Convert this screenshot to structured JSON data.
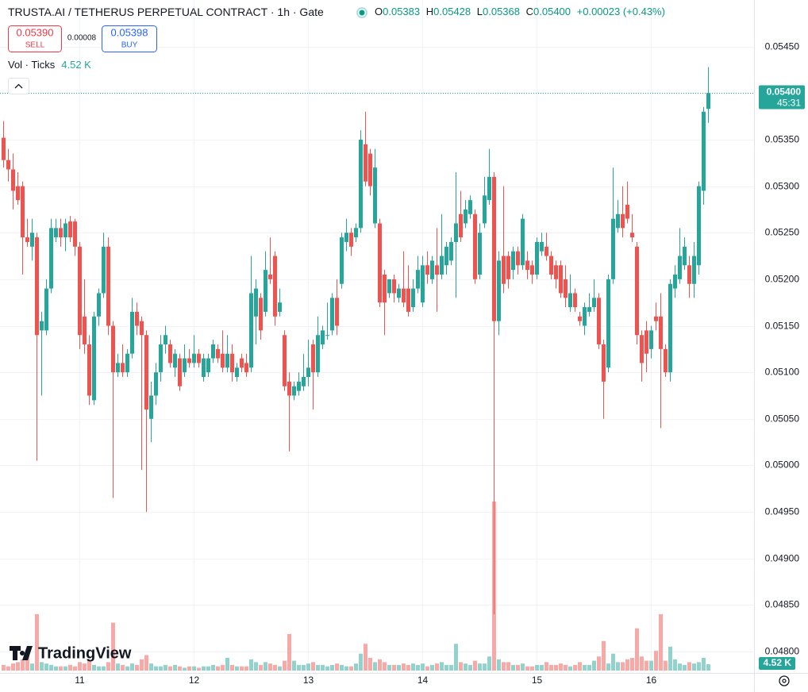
{
  "legend": {
    "symbol": "TRUSTA.AI / TETHERUS PERPETUAL CONTRACT · 1h · Gate",
    "ohlc": [
      {
        "label": "O",
        "value": "0.05383"
      },
      {
        "label": "H",
        "value": "0.05428"
      },
      {
        "label": "L",
        "value": "0.05368"
      },
      {
        "label": "C",
        "value": "0.05400"
      }
    ],
    "change": "+0.00023 (+0.43%)",
    "sell": {
      "price": "0.05390",
      "label": "SELL"
    },
    "spread": "0.00008",
    "buy": {
      "price": "0.05398",
      "label": "BUY"
    },
    "volume_name": "Vol · Ticks",
    "volume_value": "4.52 K"
  },
  "watermark": "TradingView",
  "chart_data": {
    "type": "candlestick",
    "categories": [
      null,
      null,
      null,
      null,
      null,
      null,
      null,
      null,
      null,
      null,
      null,
      null,
      null,
      null,
      null,
      null,
      "11",
      null,
      null,
      null,
      null,
      null,
      null,
      null,
      null,
      null,
      null,
      null,
      null,
      null,
      null,
      null,
      null,
      null,
      null,
      null,
      null,
      null,
      null,
      null,
      "12",
      null,
      null,
      null,
      null,
      null,
      null,
      null,
      null,
      null,
      null,
      null,
      null,
      null,
      null,
      null,
      null,
      null,
      null,
      null,
      null,
      null,
      null,
      null,
      "13",
      null,
      null,
      null,
      null,
      null,
      null,
      null,
      null,
      null,
      null,
      null,
      null,
      null,
      null,
      null,
      null,
      null,
      null,
      null,
      null,
      null,
      null,
      null,
      "14",
      null,
      null,
      null,
      null,
      null,
      null,
      null,
      null,
      null,
      null,
      null,
      null,
      null,
      null,
      null,
      null,
      null,
      null,
      null,
      null,
      null,
      null,
      null,
      "15",
      null,
      null,
      null,
      null,
      null,
      null,
      null,
      null,
      null,
      null,
      null,
      null,
      null,
      null,
      null,
      null,
      null,
      null,
      null,
      null,
      null,
      null,
      null,
      "16",
      null,
      null,
      null,
      null,
      null,
      null,
      null,
      null,
      null,
      null,
      null,
      null
    ],
    "open": [
      0.05352,
      0.05328,
      0.05318,
      0.053,
      0.053,
      0.05245,
      0.05235,
      0.05245,
      0.05145,
      0.05145,
      0.0519,
      0.05245,
      0.05255,
      0.05245,
      0.05262,
      0.05262,
      0.05235,
      0.0516,
      0.0513,
      0.0507,
      0.0516,
      0.05185,
      0.05235,
      0.0515,
      0.051,
      0.0511,
      0.051,
      0.0512,
      0.05165,
      0.05155,
      0.0514,
      0.0505,
      0.05075,
      0.051,
      0.0513,
      0.0513,
      0.05105,
      0.05115,
      0.051,
      0.05115,
      0.0511,
      0.0512,
      0.05095,
      0.051,
      0.05115,
      0.05125,
      0.0512,
      0.05105,
      0.0512,
      0.05095,
      0.05115,
      0.0511,
      0.05105,
      0.0516,
      0.0518,
      0.05165,
      0.05205,
      0.05225,
      0.05165,
      0.0514,
      0.0509,
      0.05075,
      0.0508,
      0.05085,
      0.05095,
      0.0513,
      0.051,
      0.0513,
      0.0514,
      0.05145,
      0.0518,
      0.05195,
      0.0524,
      0.0525,
      0.05245,
      0.05255,
      0.05345,
      0.05335,
      0.0526,
      0.0526,
      0.05205,
      0.05185,
      0.052,
      0.0518,
      0.0519,
      0.0519,
      0.0517,
      0.0519,
      0.05175,
      0.05215,
      0.052,
      0.05215,
      0.05205,
      0.05215,
      0.0522,
      0.0524,
      0.0527,
      0.0526,
      0.0527,
      0.0527,
      0.05205,
      0.0526,
      0.05285,
      0.0531,
      0.05155,
      0.05225,
      0.05225,
      0.0521,
      0.0523,
      0.05215,
      0.0522,
      0.05215,
      0.05205,
      0.0523,
      0.05235,
      0.05225,
      0.05215,
      0.05215,
      0.052,
      0.0517,
      0.05185,
      0.0516,
      0.0515,
      0.05165,
      0.0517,
      0.0518,
      0.0513,
      0.05105,
      0.052,
      0.05255,
      0.0527,
      0.0528,
      0.0525,
      0.05235,
      0.0514,
      0.05145,
      0.05125,
      0.0516,
      0.0516,
      0.05125,
      0.051,
      0.0519,
      0.052,
      0.05215,
      0.05215,
      0.05195,
      0.05215,
      0.05295,
      0.05383
    ],
    "high": [
      0.0537,
      0.0534,
      0.05335,
      0.05315,
      0.05305,
      0.05265,
      0.05265,
      0.0525,
      0.05165,
      0.052,
      0.05265,
      0.05265,
      0.05265,
      0.05265,
      0.05268,
      0.05265,
      0.0524,
      0.052,
      0.0514,
      0.05165,
      0.0519,
      0.0525,
      0.05245,
      0.05155,
      0.0512,
      0.0513,
      0.05125,
      0.0518,
      0.05175,
      0.0516,
      0.05145,
      0.0509,
      0.0511,
      0.0514,
      0.0515,
      0.05135,
      0.05125,
      0.0512,
      0.0513,
      0.05125,
      0.0514,
      0.05125,
      0.0512,
      0.0512,
      0.05135,
      0.0513,
      0.05145,
      0.0514,
      0.0513,
      0.0511,
      0.0512,
      0.0512,
      0.05225,
      0.052,
      0.05185,
      0.0523,
      0.05245,
      0.0523,
      0.0519,
      0.05145,
      0.051,
      0.0509,
      0.051,
      0.0512,
      0.05135,
      0.05135,
      0.0516,
      0.0515,
      0.05175,
      0.05185,
      0.052,
      0.0525,
      0.05265,
      0.05255,
      0.0526,
      0.0536,
      0.0538,
      0.0534,
      0.0534,
      0.05265,
      0.0521,
      0.052,
      0.05205,
      0.05195,
      0.0523,
      0.05215,
      0.052,
      0.05225,
      0.05225,
      0.0523,
      0.05225,
      0.05255,
      0.0527,
      0.0524,
      0.05245,
      0.05315,
      0.05295,
      0.05285,
      0.0529,
      0.05275,
      0.0526,
      0.0531,
      0.0534,
      0.05315,
      0.0523,
      0.053,
      0.0523,
      0.05235,
      0.05235,
      0.0527,
      0.0523,
      0.0522,
      0.05245,
      0.0525,
      0.0525,
      0.0523,
      0.0522,
      0.0522,
      0.05215,
      0.05205,
      0.0519,
      0.05165,
      0.05175,
      0.05185,
      0.052,
      0.05185,
      0.05135,
      0.05205,
      0.0532,
      0.05285,
      0.053,
      0.05305,
      0.0527,
      0.0524,
      0.05145,
      0.05155,
      0.0515,
      0.05175,
      0.05185,
      0.0513,
      0.052,
      0.05215,
      0.05255,
      0.05245,
      0.05225,
      0.0524,
      0.05305,
      0.05385,
      0.05428
    ],
    "low": [
      0.0532,
      0.05305,
      0.05275,
      0.0528,
      0.05205,
      0.05235,
      0.0522,
      0.05005,
      0.05075,
      0.0514,
      0.05185,
      0.0524,
      0.05235,
      0.0523,
      0.0524,
      0.05225,
      0.05125,
      0.0512,
      0.05065,
      0.05065,
      0.0515,
      0.0518,
      0.0514,
      0.04965,
      0.05095,
      0.05095,
      0.05095,
      0.05115,
      0.0514,
      0.04995,
      0.0495,
      0.05025,
      0.05065,
      0.0509,
      0.0512,
      0.05105,
      0.05095,
      0.0508,
      0.05095,
      0.05105,
      0.05105,
      0.05105,
      0.0509,
      0.05095,
      0.0511,
      0.0511,
      0.051,
      0.051,
      0.0509,
      0.0509,
      0.051,
      0.05095,
      0.051,
      0.0513,
      0.05135,
      0.0516,
      0.05195,
      0.0515,
      0.0516,
      0.0508,
      0.05015,
      0.0507,
      0.05075,
      0.0508,
      0.05085,
      0.0506,
      0.05095,
      0.05125,
      0.05135,
      0.0514,
      0.0514,
      0.0519,
      0.0523,
      0.05225,
      0.0524,
      0.0525,
      0.053,
      0.0529,
      0.05255,
      0.0517,
      0.0514,
      0.0518,
      0.05175,
      0.05175,
      0.0517,
      0.0516,
      0.05165,
      0.05185,
      0.0517,
      0.05195,
      0.05195,
      0.05165,
      0.052,
      0.05205,
      0.05215,
      0.0518,
      0.0524,
      0.05255,
      0.05265,
      0.05195,
      0.052,
      0.05255,
      0.0528,
      0.0484,
      0.0514,
      0.05185,
      0.0519,
      0.052,
      0.05205,
      0.0521,
      0.052,
      0.05195,
      0.052,
      0.05225,
      0.0522,
      0.052,
      0.0519,
      0.0518,
      0.0517,
      0.05165,
      0.05165,
      0.0515,
      0.0514,
      0.0516,
      0.05165,
      0.05125,
      0.0505,
      0.051,
      0.05195,
      0.0525,
      0.05245,
      0.0526,
      0.0524,
      0.0513,
      0.0509,
      0.051,
      0.05115,
      0.05145,
      0.0504,
      0.05095,
      0.0509,
      0.0518,
      0.05195,
      0.0521,
      0.0518,
      0.0518,
      0.05205,
      0.0528,
      0.05368
    ],
    "close": [
      0.05328,
      0.05318,
      0.05295,
      0.05285,
      0.05245,
      0.0524,
      0.0525,
      0.0514,
      0.05155,
      0.0519,
      0.05255,
      0.05255,
      0.05245,
      0.0526,
      0.05245,
      0.05235,
      0.0514,
      0.0513,
      0.05075,
      0.0516,
      0.05185,
      0.05235,
      0.0515,
      0.051,
      0.0511,
      0.051,
      0.0512,
      0.05165,
      0.0515,
      0.0514,
      0.0506,
      0.05075,
      0.051,
      0.0513,
      0.0514,
      0.0511,
      0.0512,
      0.05085,
      0.05115,
      0.0511,
      0.0512,
      0.0511,
      0.05115,
      0.05115,
      0.0513,
      0.05115,
      0.05105,
      0.0512,
      0.051,
      0.05105,
      0.05105,
      0.051,
      0.05185,
      0.0519,
      0.05145,
      0.0521,
      0.052,
      0.0516,
      0.05175,
      0.05085,
      0.05075,
      0.05085,
      0.0509,
      0.05095,
      0.05105,
      0.051,
      0.0514,
      0.05145,
      0.0514,
      0.0518,
      0.0515,
      0.05245,
      0.0525,
      0.05235,
      0.05255,
      0.0535,
      0.05305,
      0.053,
      0.0532,
      0.05175,
      0.05175,
      0.052,
      0.05185,
      0.0519,
      0.05175,
      0.05165,
      0.0519,
      0.0521,
      0.05215,
      0.05205,
      0.0522,
      0.05205,
      0.05225,
      0.05235,
      0.0524,
      0.0526,
      0.05245,
      0.05275,
      0.05285,
      0.052,
      0.0525,
      0.0529,
      0.0531,
      0.05155,
      0.0522,
      0.05195,
      0.052,
      0.0523,
      0.05215,
      0.05265,
      0.0521,
      0.05205,
      0.0524,
      0.0524,
      0.05225,
      0.05205,
      0.052,
      0.05185,
      0.0518,
      0.05185,
      0.0517,
      0.05155,
      0.0517,
      0.0517,
      0.0518,
      0.0513,
      0.0509,
      0.052,
      0.05265,
      0.0527,
      0.05255,
      0.05265,
      0.05245,
      0.0514,
      0.0511,
      0.0512,
      0.05145,
      0.05155,
      0.05125,
      0.051,
      0.05195,
      0.05205,
      0.05225,
      0.05235,
      0.05195,
      0.05225,
      0.053,
      0.0538,
      0.054
    ],
    "volume": [
      4,
      3,
      5,
      6,
      8,
      14,
      5,
      40,
      6,
      5,
      4,
      3,
      3,
      3,
      4,
      3,
      6,
      5,
      7,
      4,
      3,
      3,
      6,
      34,
      5,
      4,
      3,
      5,
      4,
      8,
      11,
      5,
      3,
      3,
      4,
      3,
      4,
      3,
      2,
      3,
      3,
      2,
      3,
      3,
      4,
      3,
      4,
      9,
      4,
      3,
      3,
      3,
      8,
      6,
      4,
      6,
      5,
      4,
      3,
      7,
      26,
      7,
      4,
      4,
      5,
      6,
      4,
      4,
      3,
      4,
      5,
      4,
      3,
      3,
      5,
      12,
      19,
      9,
      6,
      8,
      6,
      4,
      4,
      4,
      5,
      4,
      5,
      4,
      5,
      3,
      4,
      5,
      6,
      4,
      4,
      19,
      6,
      5,
      4,
      7,
      5,
      5,
      10,
      120,
      8,
      6,
      6,
      4,
      4,
      5,
      3,
      3,
      4,
      4,
      6,
      4,
      4,
      5,
      4,
      3,
      4,
      6,
      4,
      4,
      7,
      10,
      21,
      5,
      12,
      6,
      6,
      8,
      9,
      30,
      10,
      7,
      7,
      14,
      40,
      7,
      17,
      8,
      5,
      4,
      6,
      5,
      6,
      9,
      4.52
    ],
    "last_price_label": "0.05400",
    "countdown": "45:31",
    "up_color": "#26a69a",
    "down_color": "#ef5350",
    "volume_up_color": "#92d2cc",
    "volume_down_color": "#f7a9a7",
    "ylim": [
      0.04777,
      0.055
    ],
    "yticks": [
      {
        "value": 0.048,
        "label": "0.04800"
      },
      {
        "value": 0.0485,
        "label": "0.04850"
      },
      {
        "value": 0.049,
        "label": "0.04900"
      },
      {
        "value": 0.0495,
        "label": "0.04950"
      },
      {
        "value": 0.05,
        "label": "0.05000"
      },
      {
        "value": 0.0505,
        "label": "0.05050"
      },
      {
        "value": 0.051,
        "label": "0.05100"
      },
      {
        "value": 0.0515,
        "label": "0.05150"
      },
      {
        "value": 0.052,
        "label": "0.05200"
      },
      {
        "value": 0.0525,
        "label": "0.05250"
      },
      {
        "value": 0.053,
        "label": "0.05300"
      },
      {
        "value": 0.0535,
        "label": "0.05350"
      },
      {
        "value": 0.054,
        "label": "0.05400"
      },
      {
        "value": 0.0545,
        "label": "0.05450"
      }
    ],
    "grid": true
  }
}
